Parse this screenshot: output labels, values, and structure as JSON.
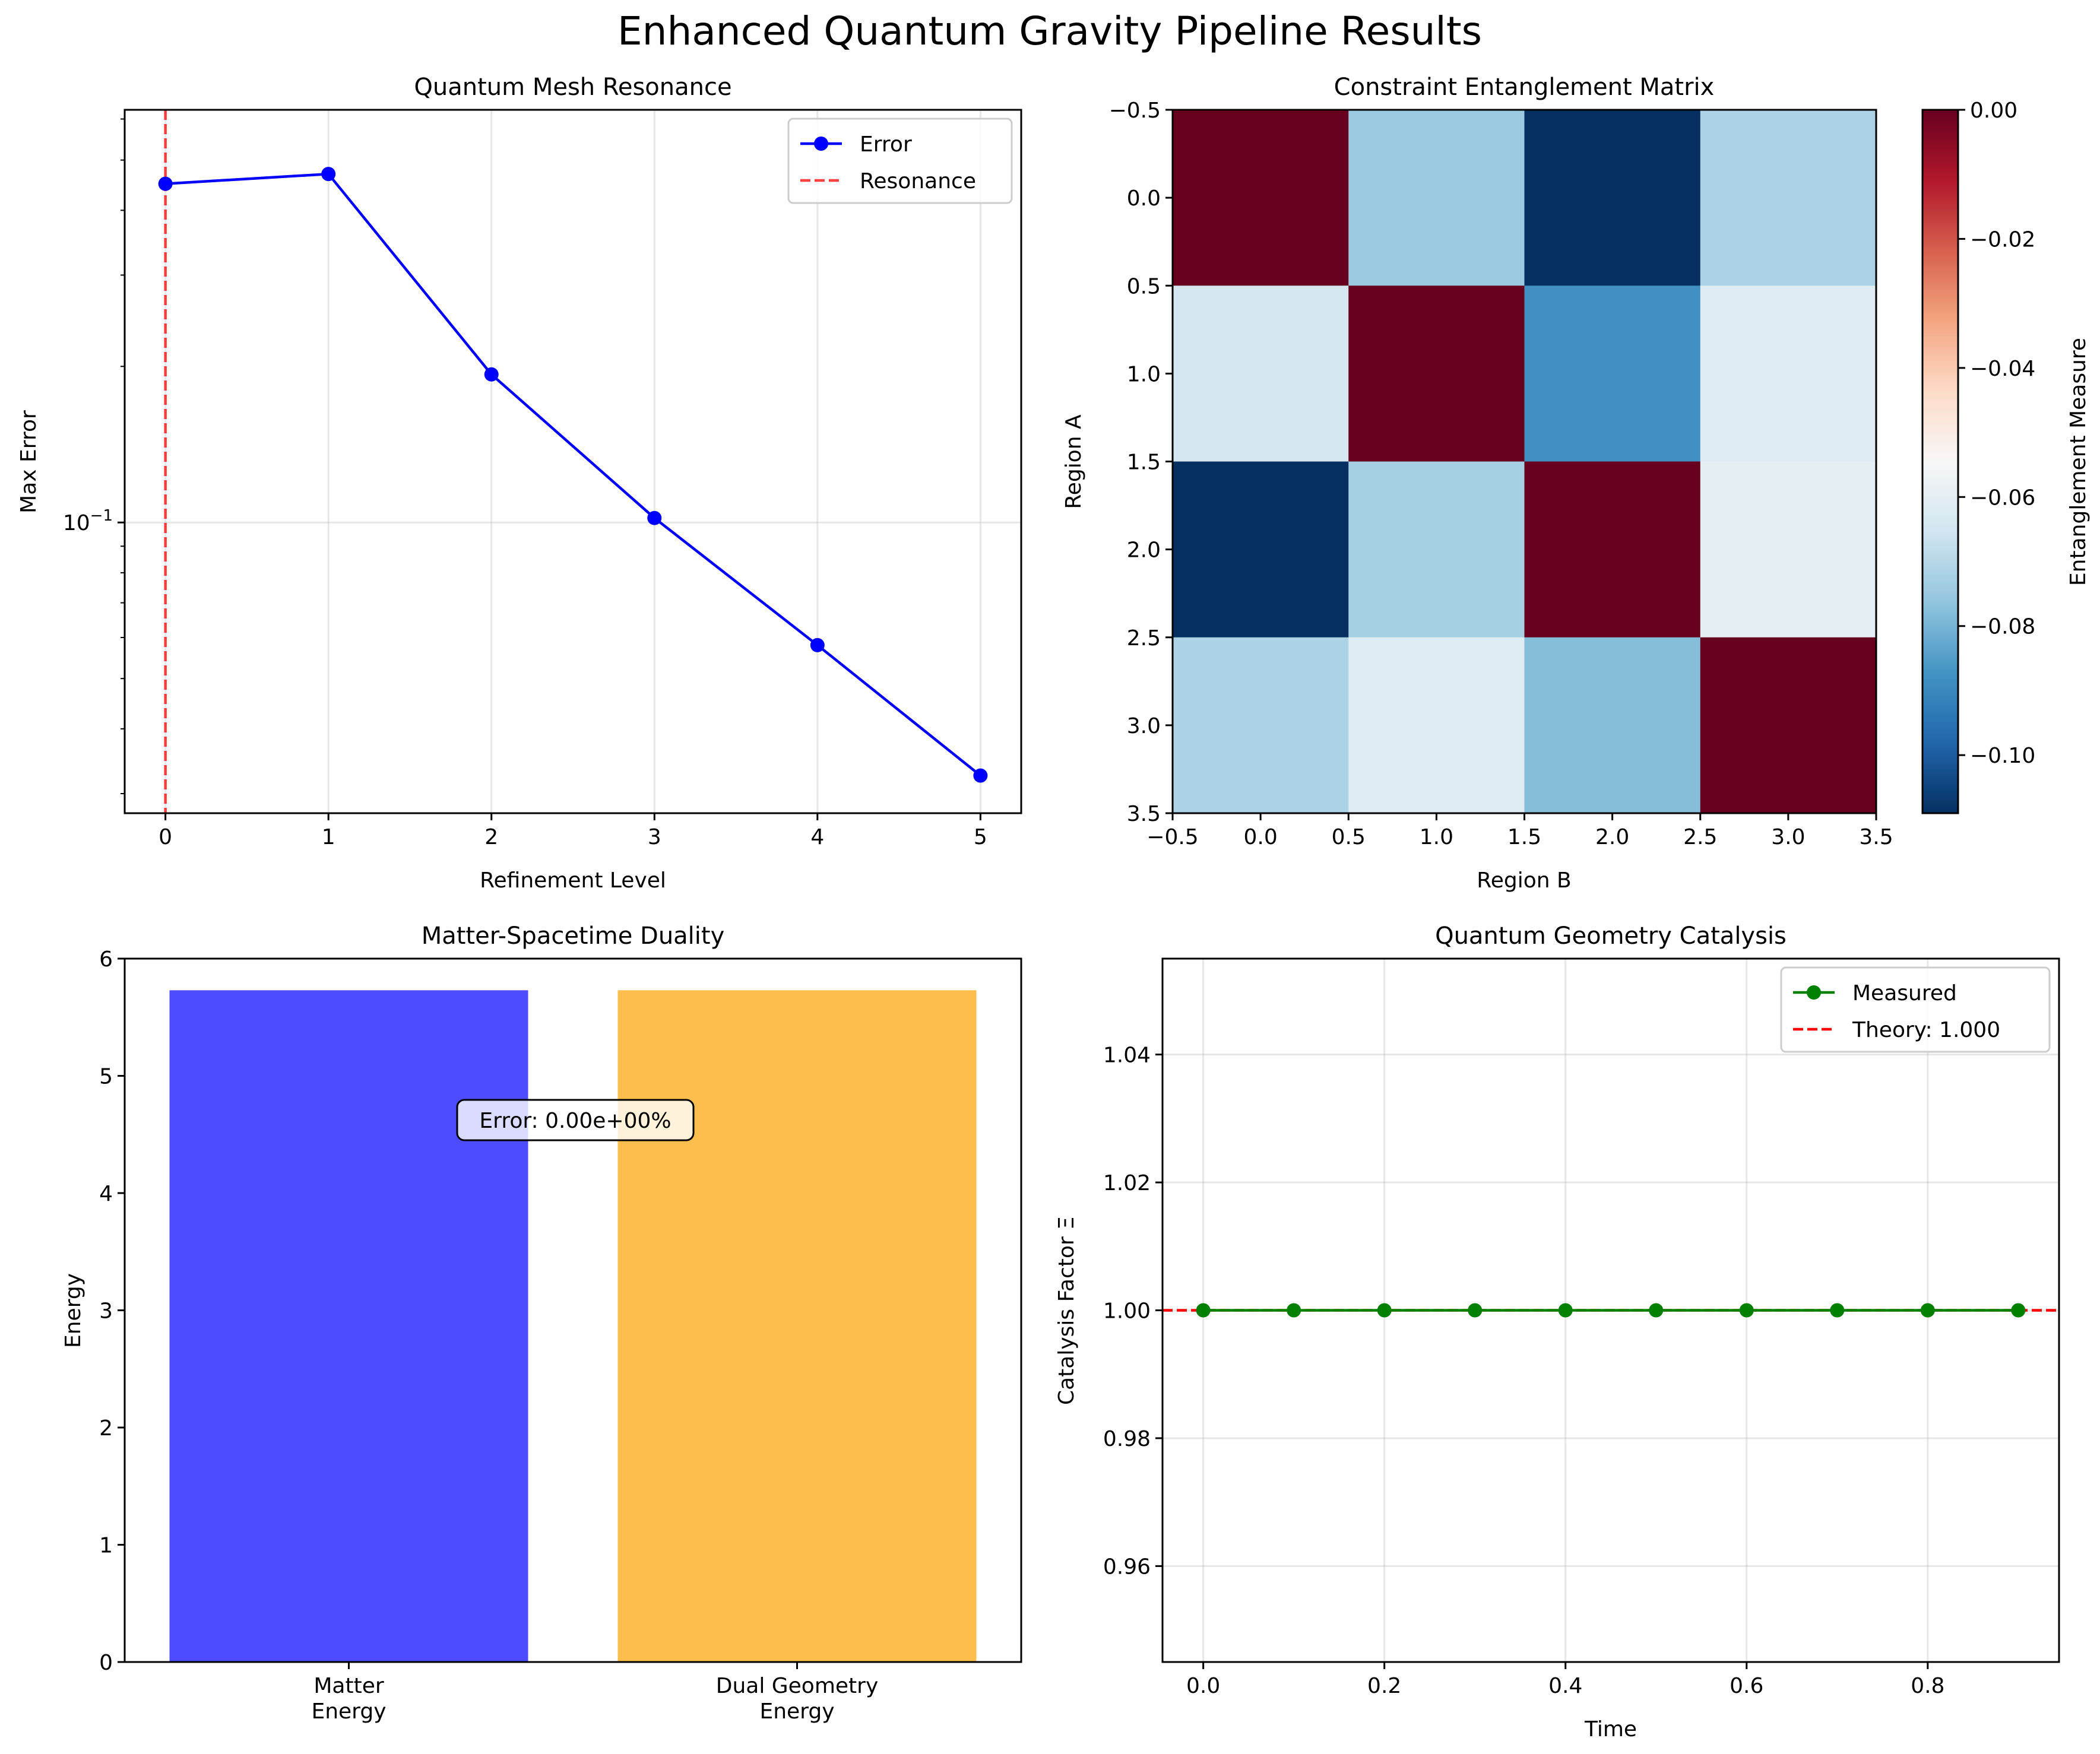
{
  "figure": {
    "suptitle": "Enhanced Quantum Gravity Pipeline Results"
  },
  "chart_data": [
    {
      "type": "line",
      "title": "Quantum Mesh Resonance",
      "xlabel": "Refinement Level",
      "ylabel": "Max Error",
      "yscale": "log",
      "x": [
        0,
        1,
        2,
        3,
        4,
        5
      ],
      "xticks": [
        "0",
        "1",
        "2",
        "3",
        "4",
        "5"
      ],
      "yticks_major": [
        "10^-1"
      ],
      "xlim": [
        -0.25,
        5.25
      ],
      "ylim": [
        0.0275,
        0.625
      ],
      "series": [
        {
          "name": "Error",
          "color": "#0000ff",
          "marker": "circle",
          "values": [
            0.45,
            0.47,
            0.193,
            0.102,
            0.058,
            0.0325
          ]
        }
      ],
      "reference_lines": [
        {
          "name": "Resonance",
          "orientation": "vertical",
          "x": 0,
          "color": "#ff0000",
          "style": "dashed"
        }
      ],
      "legend": {
        "position": "upper right",
        "entries": [
          "Error",
          "Resonance"
        ]
      },
      "grid": true
    },
    {
      "type": "heatmap",
      "title": "Constraint Entanglement Matrix",
      "xlabel": "Region B",
      "ylabel": "Region A",
      "colorbar_label": "Entanglement Measure",
      "colormap": "RdBu_r",
      "vmin": -0.109,
      "vmax": 0.0,
      "xticks": [
        "−0.5",
        "0.0",
        "0.5",
        "1.0",
        "1.5",
        "2.0",
        "2.5",
        "3.0",
        "3.5"
      ],
      "yticks": [
        "−0.5",
        "0.0",
        "0.5",
        "1.0",
        "1.5",
        "2.0",
        "2.5",
        "3.0",
        "3.5"
      ],
      "colorbar_ticks": [
        "0.00",
        "−0.02",
        "−0.04",
        "−0.06",
        "−0.08",
        "−0.10"
      ],
      "matrix": [
        [
          0.0,
          -0.075,
          -0.109,
          -0.072
        ],
        [
          -0.064,
          0.0,
          -0.088,
          -0.061
        ],
        [
          -0.109,
          -0.073,
          0.0,
          -0.06
        ],
        [
          -0.072,
          -0.061,
          -0.078,
          0.0
        ]
      ]
    },
    {
      "type": "bar",
      "title": "Matter-Spacetime Duality",
      "ylabel": "Energy",
      "categories": [
        "Matter\nEnergy",
        "Dual Geometry\nEnergy"
      ],
      "values": [
        5.73,
        5.73
      ],
      "colors": [
        "#4d4dff",
        "#fdbe4d"
      ],
      "ylim": [
        0,
        6
      ],
      "yticks": [
        "0",
        "1",
        "2",
        "3",
        "4",
        "5",
        "6"
      ],
      "annotation": "Error: 0.00e+00%"
    },
    {
      "type": "line",
      "title": "Quantum Geometry Catalysis",
      "xlabel": "Time",
      "ylabel": "Catalysis Factor Ξ",
      "x": [
        0.0,
        0.1,
        0.2,
        0.3,
        0.4,
        0.5,
        0.6,
        0.7,
        0.8,
        0.9
      ],
      "xticks": [
        "0.0",
        "0.2",
        "0.4",
        "0.6",
        "0.8"
      ],
      "yticks": [
        "0.96",
        "0.98",
        "1.00",
        "1.02",
        "1.04"
      ],
      "xlim": [
        -0.045,
        0.945
      ],
      "ylim": [
        0.945,
        1.055
      ],
      "series": [
        {
          "name": "Measured",
          "color": "#008000",
          "marker": "circle",
          "values": [
            1.0,
            1.0,
            1.0,
            1.0,
            1.0,
            1.0,
            1.0,
            1.0,
            1.0,
            1.0
          ]
        }
      ],
      "reference_lines": [
        {
          "name": "Theory: 1.000",
          "orientation": "horizontal",
          "y": 1.0,
          "color": "#ff0000",
          "style": "dashed"
        }
      ],
      "legend": {
        "position": "upper right",
        "entries": [
          "Measured",
          "Theory: 1.000"
        ]
      },
      "grid": true
    }
  ]
}
